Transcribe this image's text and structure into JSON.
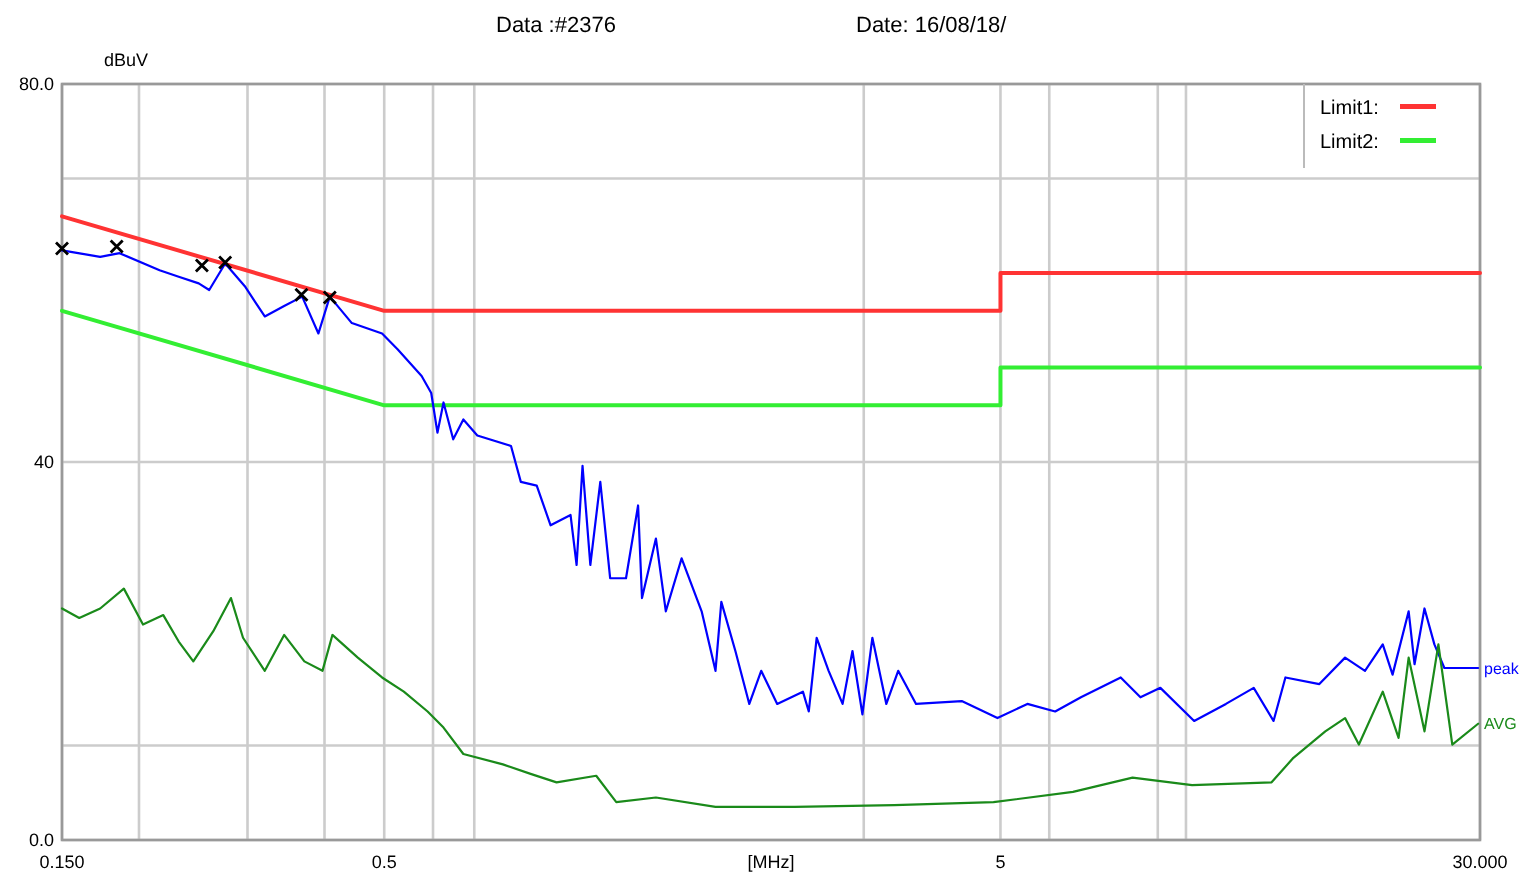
{
  "chart_data": {
    "type": "line",
    "xlabel": "[MHz]",
    "ylabel": "dBuV",
    "annotations": [
      "Data :#2376",
      "Date: 16/08/18/"
    ],
    "log": "x",
    "grid": true,
    "legend": "top right",
    "xlim": [
      0.15,
      30
    ],
    "ylim": [
      0,
      80
    ],
    "xticks": [
      {
        "value": 0.15,
        "label": "0.150"
      },
      {
        "value": 0.2,
        "label": null
      },
      {
        "value": 0.3,
        "label": null
      },
      {
        "value": 0.4,
        "label": null
      },
      {
        "value": 0.5,
        "label": "0.5"
      },
      {
        "value": 0.6,
        "label": null
      },
      {
        "value": 0.7,
        "label": null
      },
      {
        "value": 3,
        "label": null
      },
      {
        "value": 5,
        "label": "5"
      },
      {
        "value": 6,
        "label": null
      },
      {
        "value": 9,
        "label": null
      },
      {
        "value": 10,
        "label": null
      },
      {
        "value": 30,
        "label": "30.000"
      }
    ],
    "yticks": [
      {
        "value": 0,
        "label": "0.0"
      },
      {
        "value": 10,
        "label": null
      },
      40,
      {
        "value": 70,
        "label": null
      },
      {
        "value": 80,
        "label": "80.0"
      }
    ],
    "series": [
      {
        "name": "Limit1:",
        "color": "#ff3333",
        "x": [
          0.15,
          0.5,
          5,
          5,
          30
        ],
        "values": [
          66,
          56,
          56,
          60,
          60
        ]
      },
      {
        "name": "Limit2:",
        "color": "#33ee33",
        "x": [
          0.15,
          0.5,
          5,
          5,
          30
        ],
        "values": [
          56,
          46,
          46,
          50,
          50
        ]
      },
      {
        "name": "peak",
        "color": "#0000ff",
        "x": [
          0.15,
          0.173,
          0.186,
          0.216,
          0.232,
          0.25,
          0.26,
          0.276,
          0.297,
          0.32,
          0.344,
          0.368,
          0.391,
          0.408,
          0.443,
          0.496,
          0.526,
          0.575,
          0.596,
          0.61,
          0.624,
          0.647,
          0.672,
          0.708,
          0.803,
          0.833,
          0.884,
          0.931,
          1.003,
          1.026,
          1.049,
          1.08,
          1.121,
          1.163,
          1.234,
          1.291,
          1.31,
          1.38,
          1.432,
          1.519,
          1.637,
          1.724,
          1.762,
          1.857,
          1.956,
          2.045,
          2.171,
          2.39,
          2.443,
          2.516,
          2.631,
          2.772,
          2.876,
          2.985,
          3.098,
          3.264,
          3.412,
          3.647,
          4.326,
          4.944,
          5.529,
          6.134,
          6.754,
          7.836,
          8.436,
          9.088,
          10.31,
          11.61,
          12.88,
          13.87,
          14.5,
          16.46,
          18.12,
          19.52,
          20.86,
          21.64,
          22.98,
          23.49,
          24.38,
          25.3,
          26.26,
          29.79
        ],
        "values": [
          62.4,
          61.7,
          62.1,
          60.3,
          59.6,
          58.9,
          58.2,
          61.0,
          58.6,
          55.4,
          56.5,
          57.5,
          53.6,
          57.5,
          54.7,
          53.6,
          51.9,
          49.1,
          47.3,
          43.1,
          46.3,
          42.4,
          44.5,
          42.8,
          41.7,
          37.9,
          37.5,
          33.3,
          34.4,
          29.1,
          39.6,
          29.1,
          37.9,
          27.7,
          27.7,
          35.4,
          25.6,
          31.9,
          24.2,
          29.8,
          24.2,
          17.9,
          25.2,
          20.0,
          14.4,
          17.9,
          14.4,
          15.7,
          13.6,
          21.4,
          17.9,
          14.4,
          20.0,
          13.3,
          21.4,
          14.4,
          17.9,
          14.4,
          14.7,
          12.9,
          14.4,
          13.6,
          15.1,
          17.2,
          15.1,
          16.1,
          12.6,
          14.4,
          16.1,
          12.6,
          17.2,
          16.5,
          19.3,
          17.9,
          20.7,
          17.5,
          24.2,
          18.6,
          24.5,
          20.7,
          18.2,
          18.2
        ]
      },
      {
        "name": "AVG",
        "color": "#1a8a1a",
        "x": [
          0.15,
          0.16,
          0.173,
          0.189,
          0.203,
          0.219,
          0.232,
          0.245,
          0.264,
          0.282,
          0.295,
          0.32,
          0.344,
          0.371,
          0.397,
          0.412,
          0.453,
          0.496,
          0.538,
          0.588,
          0.624,
          0.672,
          0.779,
          0.864,
          0.952,
          1.104,
          1.19,
          1.38,
          1.724,
          2.319,
          3.362,
          4.872,
          6.556,
          8.19,
          10.23,
          13.77,
          14.94,
          16.83,
          18.12,
          19.08,
          20.86,
          22.13,
          22.98,
          24.38,
          25.68,
          27.05,
          29.79
        ],
        "values": [
          24.5,
          23.5,
          24.5,
          26.6,
          22.8,
          23.8,
          21.0,
          18.9,
          22.1,
          25.6,
          21.4,
          17.9,
          21.7,
          18.9,
          17.9,
          21.7,
          19.3,
          17.2,
          15.7,
          13.6,
          11.9,
          9.1,
          8.0,
          7.0,
          6.1,
          6.8,
          4.0,
          4.5,
          3.5,
          3.5,
          3.7,
          4.0,
          5.1,
          6.6,
          5.8,
          6.1,
          8.7,
          11.5,
          12.9,
          10.1,
          15.7,
          10.8,
          19.3,
          11.5,
          20.7,
          10.1,
          12.3
        ]
      },
      {
        "type": "scatter",
        "marker": "cross",
        "color": "#000000",
        "x": [
          0.15,
          0.184,
          0.253,
          0.276,
          0.367,
          0.408
        ],
        "values": [
          62.6,
          62.8,
          60.8,
          61.1,
          57.7,
          57.4
        ]
      }
    ]
  }
}
